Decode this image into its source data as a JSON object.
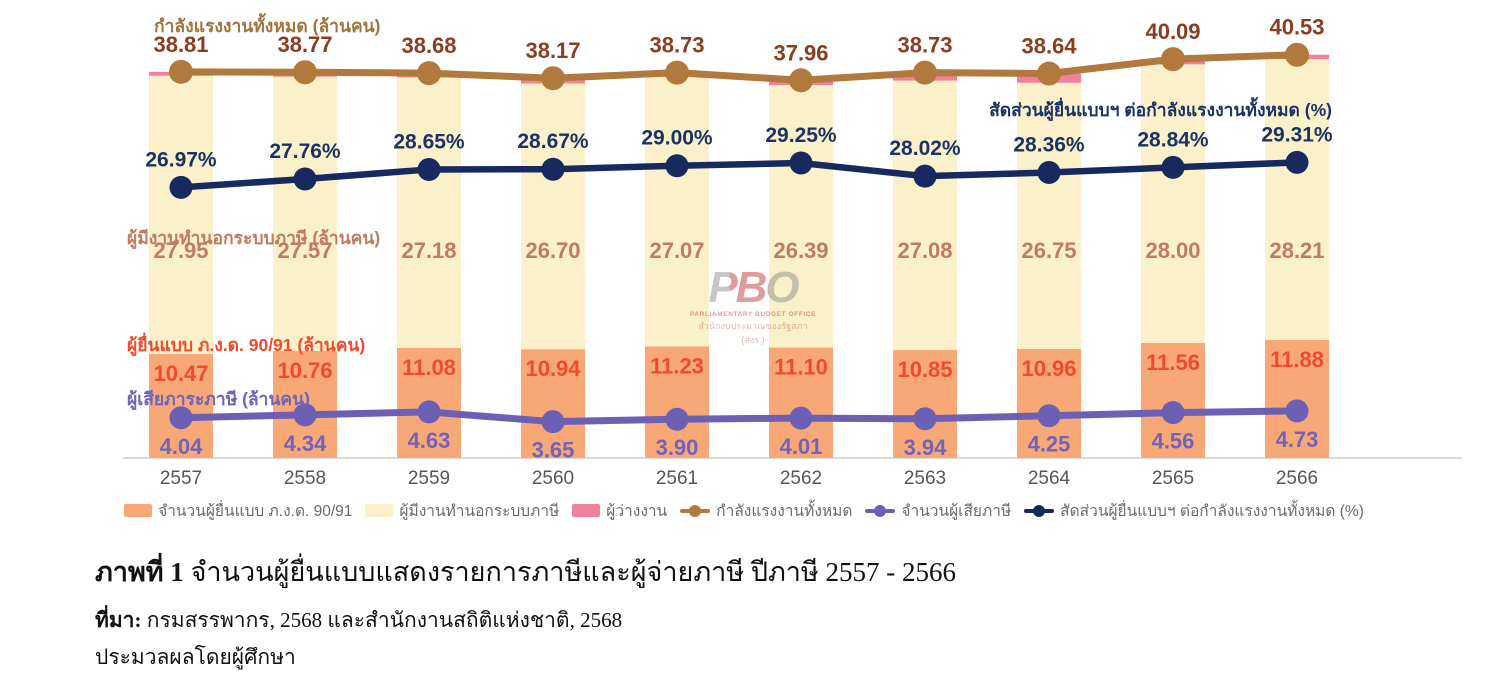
{
  "watermark": {
    "logo_text": "PBO",
    "line1": "PARLIAMENTARY BUDGET OFFICE",
    "line2": "สำนักงบประมาณของรัฐสภา (สงร.)"
  },
  "annotations": {
    "labor_force_label": "กำลังแรงงานทั้งหมด (ล้านคน)",
    "ratio_label": "สัดส่วนผู้ยื่นแบบฯ ต่อกำลังแรงงานทั้งหมด (%)",
    "informal_label": "ผู้มีงานทำนอกระบบภาษี (ล้านคน)",
    "filers_label": "ผู้ยื่นแบบ ภ.ง.ด. 90/91 (ล้านคน)",
    "taxpayers_label": "ผู้เสียภาระภาษี (ล้านคน)"
  },
  "chart_data": {
    "type": "combo: stacked bar + 3 lines",
    "categories": [
      "2557",
      "2558",
      "2559",
      "2560",
      "2561",
      "2562",
      "2563",
      "2564",
      "2565",
      "2566"
    ],
    "series": [
      {
        "name": "จำนวนผู้ยื่นแบบ ภ.ง.ด. 90/91",
        "render": "bar",
        "stack": true,
        "color": "#F8A877",
        "label_color": "#EE4B2F",
        "values": [
          10.47,
          10.76,
          11.08,
          10.94,
          11.23,
          11.1,
          10.85,
          10.96,
          11.56,
          11.88
        ]
      },
      {
        "name": "ผู้มีงานทำนอกระบบภาษี",
        "render": "bar",
        "stack": true,
        "color": "#FAF0C9",
        "label_color": "#C17B60",
        "values": [
          27.95,
          27.57,
          27.18,
          26.7,
          27.07,
          26.39,
          27.08,
          26.75,
          28.0,
          28.21
        ]
      },
      {
        "name": "ผู้ว่างงาน",
        "render": "bar",
        "stack": true,
        "color": "#F0809B",
        "label_color": null,
        "labels_shown": false,
        "values": [
          0.39,
          0.44,
          0.42,
          0.53,
          0.43,
          0.47,
          0.8,
          0.93,
          0.53,
          0.44
        ]
      },
      {
        "name": "กำลังแรงงานทั้งหมด",
        "render": "line",
        "axis": "millions",
        "color": "#B1793B",
        "label_color": "#8B3D20",
        "values": [
          38.81,
          38.77,
          38.68,
          38.17,
          38.73,
          37.96,
          38.73,
          38.64,
          40.09,
          40.53
        ]
      },
      {
        "name": "จำนวนผู้เสียภาษี",
        "render": "line",
        "axis": "millions",
        "color": "#6C60B4",
        "label_color": "#6F63BB",
        "values": [
          4.04,
          4.34,
          4.63,
          3.65,
          3.9,
          4.01,
          3.94,
          4.25,
          4.56,
          4.73
        ]
      },
      {
        "name": "สัดส่วนผู้ยื่นแบบฯ ต่อกำลังแรงงานทั้งหมด (%)",
        "render": "line",
        "axis": "percent",
        "suffix": "%",
        "color": "#17295F",
        "label_color": "#1B3266",
        "values": [
          26.97,
          27.76,
          28.65,
          28.67,
          29.0,
          29.25,
          28.02,
          28.36,
          28.84,
          29.31
        ]
      }
    ],
    "xlabel": "",
    "ylabel": "ล้านคน",
    "x_labels_color": "#575757",
    "baseline_color": "#DADADA",
    "grid": false,
    "legend_position": "bottom"
  },
  "caption": {
    "figure_bold": "ภาพที่ 1",
    "figure_text": " จำนวนผู้ยื่นแบบแสดงรายการภาษีและผู้จ่ายภาษี ปีภาษี 2557 - 2566",
    "source_bold": "ที่มา:",
    "source_text": " กรมสรรพากร, 2568 และสำนักงานสถิติแห่งชาติ, 2568",
    "processed_text": "ประมวลผลโดยผู้ศึกษา"
  }
}
